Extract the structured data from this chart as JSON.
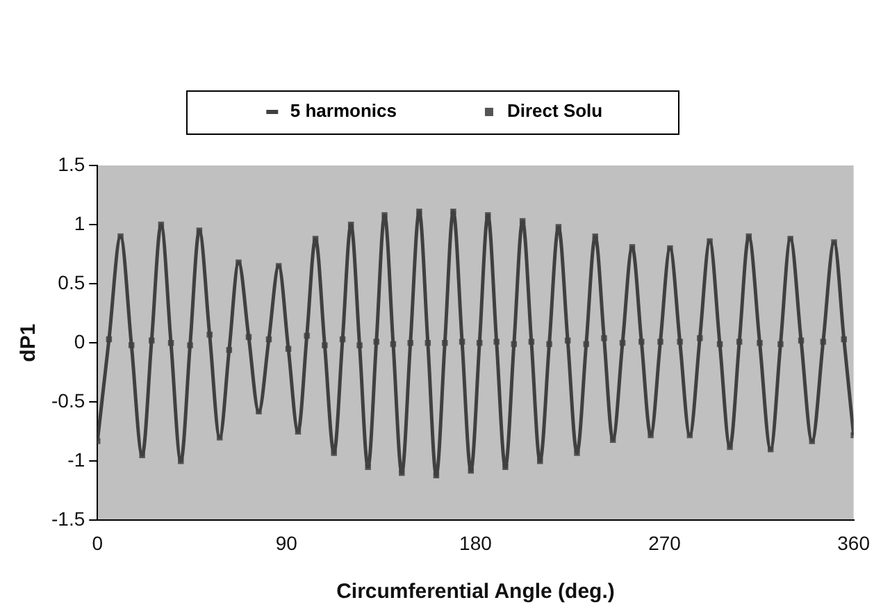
{
  "chart_data": {
    "type": "line",
    "xlabel": "Circumferential Angle (deg.)",
    "ylabel": "dP1",
    "x": [
      0,
      5.5,
      11,
      16.2,
      21.3,
      25.8,
      30.3,
      35,
      39.7,
      44.1,
      48.5,
      53.4,
      58.2,
      62.7,
      67.2,
      72,
      76.8,
      81.6,
      86.3,
      90.9,
      95.5,
      99.7,
      103.8,
      108.2,
      112.6,
      116.7,
      120.7,
      124.8,
      128.8,
      132.8,
      136.7,
      140.8,
      144.9,
      149,
      153.2,
      157.3,
      161.3,
      165.4,
      169.4,
      173.6,
      177.8,
      181.9,
      185.9,
      190,
      194.2,
      198.3,
      202.4,
      206.6,
      210.7,
      215.1,
      219.5,
      223.9,
      228.3,
      232.7,
      237,
      241.2,
      245.4,
      250,
      254.6,
      259,
      263.4,
      268,
      272.6,
      277.3,
      282,
      286.8,
      291.5,
      296.3,
      301.1,
      305.6,
      310.1,
      315.3,
      320.5,
      325.2,
      329.9,
      335,
      340.2,
      345.5,
      350.7,
      355.4,
      360
    ],
    "series": [
      {
        "name": "5 harmonics",
        "type": "line",
        "color": "#404040",
        "marker": "none",
        "line_style": "solid",
        "values": [
          -0.83,
          0.03,
          0.9,
          -0.02,
          -0.95,
          0.02,
          1.0,
          0,
          -1.0,
          -0.02,
          0.95,
          0.07,
          -0.8,
          -0.06,
          0.68,
          0.05,
          -0.58,
          0.03,
          0.65,
          -0.05,
          -0.75,
          0.06,
          0.88,
          -0.02,
          -0.93,
          0.03,
          1.0,
          -0.02,
          -1.05,
          0.01,
          1.08,
          -0.01,
          -1.1,
          0,
          1.11,
          0,
          -1.12,
          0,
          1.11,
          0.01,
          -1.08,
          0,
          1.08,
          0.01,
          -1.05,
          -0.01,
          1.03,
          0.01,
          -1.0,
          -0.01,
          0.98,
          0.02,
          -0.93,
          -0.01,
          0.9,
          0.04,
          -0.82,
          0,
          0.81,
          0.01,
          -0.78,
          0.01,
          0.8,
          0.01,
          -0.78,
          0.04,
          0.86,
          -0.01,
          -0.88,
          0.01,
          0.9,
          0,
          -0.9,
          -0.01,
          0.88,
          0.02,
          -0.83,
          0.01,
          0.85,
          0.03,
          -0.78
        ]
      },
      {
        "name": "Direct Solu",
        "type": "scatter",
        "color": "#555555",
        "marker": "square",
        "values": [
          -0.83,
          0.03,
          0.9,
          -0.02,
          -0.95,
          0.02,
          1.0,
          0,
          -1.0,
          -0.02,
          0.95,
          0.07,
          -0.8,
          -0.06,
          0.68,
          0.05,
          -0.58,
          0.03,
          0.65,
          -0.05,
          -0.75,
          0.06,
          0.88,
          -0.02,
          -0.93,
          0.03,
          1.0,
          -0.02,
          -1.05,
          0.01,
          1.08,
          -0.01,
          -1.1,
          0,
          1.11,
          0,
          -1.12,
          0,
          1.11,
          0.01,
          -1.08,
          0,
          1.08,
          0.01,
          -1.05,
          -0.01,
          1.03,
          0.01,
          -1.0,
          -0.01,
          0.98,
          0.02,
          -0.93,
          -0.01,
          0.9,
          0.04,
          -0.82,
          0,
          0.81,
          0.01,
          -0.78,
          0.01,
          0.8,
          0.01,
          -0.78,
          0.04,
          0.86,
          -0.01,
          -0.88,
          0.01,
          0.9,
          0,
          -0.9,
          -0.01,
          0.88,
          0.02,
          -0.83,
          0.01,
          0.85,
          0.03,
          -0.78
        ]
      }
    ],
    "xlim": [
      0,
      360
    ],
    "xticks": [
      0,
      90,
      180,
      270,
      360
    ],
    "ylim": [
      -1.5,
      1.5
    ],
    "yticks": [
      -1.5,
      -1,
      -0.5,
      0,
      0.5,
      1,
      1.5
    ],
    "grid": false,
    "legend": "top"
  }
}
